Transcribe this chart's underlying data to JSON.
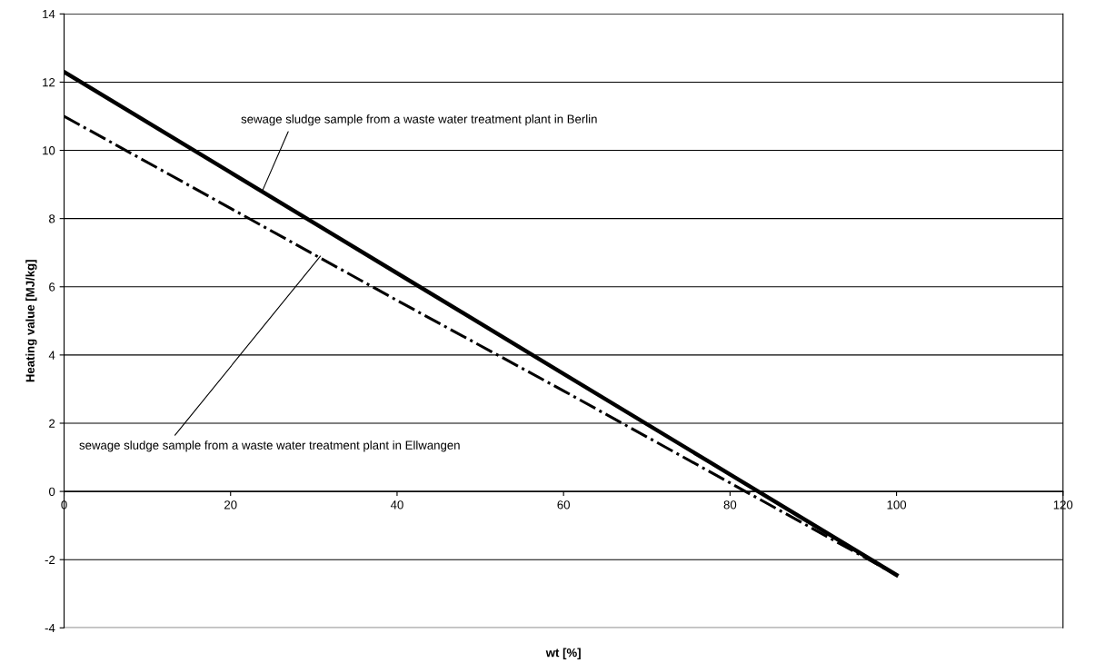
{
  "chart_data": {
    "type": "line",
    "xlabel": "wt [%]",
    "ylabel": "Heating value [MJ/kg]",
    "series": [
      {
        "x": [
          0,
          20,
          40,
          60,
          80,
          100
        ],
        "values": [
          12.3,
          9.35,
          6.4,
          3.45,
          0.5,
          -2.45
        ],
        "color": "#000000",
        "line_style": "solid"
      },
      {
        "x": [
          0,
          20,
          40,
          60,
          80,
          100
        ],
        "values": [
          11.0,
          8.3,
          5.6,
          2.95,
          0.25,
          -2.45
        ],
        "color": "#000000",
        "line_style": "dashdot"
      }
    ],
    "annotations": [
      {
        "text": "sewage sludge sample from a waste water treatment plant in Berlin",
        "x": 23.8,
        "y": 8.8
      },
      {
        "text": "sewage sludge sample from a waste water treatment plant in Ellwangen",
        "x": 30.8,
        "y": 6.9
      }
    ],
    "xlim": [
      0,
      120
    ],
    "xticks": [
      0,
      20,
      40,
      60,
      80,
      100,
      120
    ],
    "ylim": [
      -4,
      14
    ],
    "yticks": [
      -4,
      -2,
      0,
      2,
      4,
      6,
      8,
      10,
      12,
      14
    ],
    "grid": "y",
    "legend": false,
    "marker": "none"
  }
}
